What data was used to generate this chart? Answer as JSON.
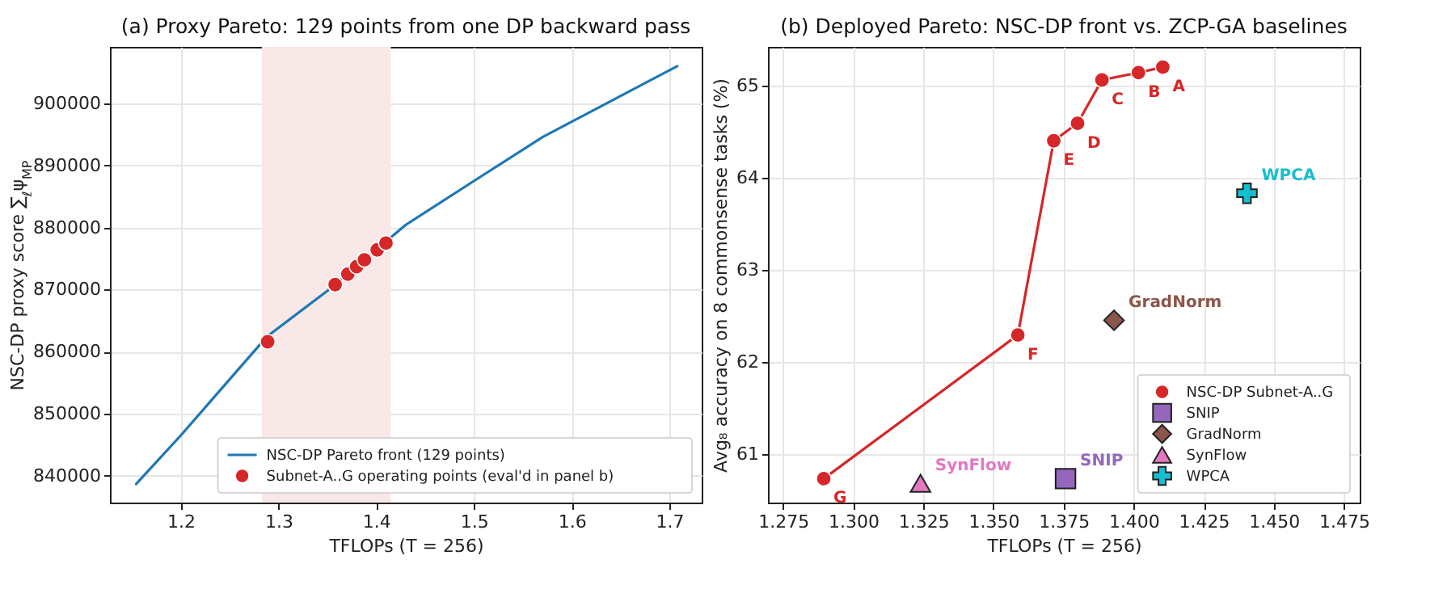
{
  "chart_data": [
    {
      "type": "line",
      "title": "(a) Proxy Pareto: 129 points from one DP backward pass",
      "xlabel": "TFLOPs (T = 256)",
      "ylabel": "NSC-DP proxy score ∑$_{ℓ}$ψ$_{MP}$",
      "xlim": [
        1.1276,
        1.733
      ],
      "xticks": [
        1.2,
        1.3,
        1.4,
        1.5,
        1.6,
        1.7
      ],
      "ylim": [
        835700,
        909100
      ],
      "yticks": [
        840000,
        850000,
        860000,
        870000,
        880000,
        890000,
        900000
      ],
      "grid": true,
      "legend": "bottom right",
      "bands": [
        {
          "axis": "x",
          "from": 1.283,
          "to": 1.415,
          "color": "#f9e8e8"
        }
      ],
      "series": [
        {
          "name": "NSC-DP Pareto front (129 points)",
          "type": "line",
          "color": "#1f77b4",
          "marker": "none",
          "x": [
            1.1545,
            1.2,
            1.288,
            1.35,
            1.43,
            1.499,
            1.5706,
            1.708
          ],
          "values": [
            838700,
            846500,
            862400,
            869800,
            880400,
            887400,
            894600,
            906000
          ]
        },
        {
          "name": "Subnet-A..G operating points (eval'd in panel b)",
          "type": "scatter",
          "color": "#d62728",
          "marker": "circle",
          "x": [
            1.289,
            1.358,
            1.371,
            1.38,
            1.388,
            1.401,
            1.41
          ],
          "values": [
            861600,
            870800,
            872500,
            873700,
            874800,
            876400,
            877500
          ]
        }
      ]
    },
    {
      "type": "line",
      "title": "(b) Deployed Pareto: NSC-DP front vs. ZCP-GA baselines",
      "xlabel": "TFLOPs (T = 256)",
      "ylabel": "Avg₈ accuracy on 8 commonsense tasks (%)",
      "xlim": [
        1.2696,
        1.4806
      ],
      "xticks": [
        {
          "value": 1.275,
          "label": "1.275"
        },
        {
          "value": 1.3,
          "label": "1.300"
        },
        {
          "value": 1.325,
          "label": "1.325"
        },
        {
          "value": 1.35,
          "label": "1.350"
        },
        {
          "value": 1.375,
          "label": "1.375"
        },
        {
          "value": 1.4,
          "label": "1.400"
        },
        {
          "value": 1.425,
          "label": "1.425"
        },
        {
          "value": 1.45,
          "label": "1.450"
        },
        {
          "value": 1.475,
          "label": "1.475"
        }
      ],
      "ylim": [
        60.47,
        65.42
      ],
      "yticks": [
        61,
        62,
        63,
        64,
        65
      ],
      "grid": true,
      "legend": "bottom right",
      "series": [
        {
          "name": "NSC-DP Subnet-A..G",
          "type": "line",
          "color": "#d62728",
          "marker": "circle",
          "x": [
            1.2895,
            1.3587,
            1.3715,
            1.38,
            1.3887,
            1.4017,
            1.4104
          ],
          "values": [
            60.73,
            62.29,
            64.4,
            64.59,
            65.06,
            65.14,
            65.2
          ]
        },
        {
          "name": "SNIP",
          "type": "scatter",
          "color": "#9467bd",
          "marker": "square",
          "x": [
            1.3757
          ],
          "values": [
            60.73
          ]
        },
        {
          "name": "GradNorm",
          "type": "scatter",
          "color": "#8c564b",
          "marker": "diamond",
          "x": [
            1.393
          ],
          "values": [
            62.45
          ]
        },
        {
          "name": "SynFlow",
          "type": "scatter",
          "color": "#e377c2",
          "marker": "triangle",
          "x": [
            1.324
          ],
          "values": [
            60.68
          ]
        },
        {
          "name": "WPCA",
          "type": "scatter",
          "color": "#17becf",
          "marker": "cross",
          "x": [
            1.4404
          ],
          "values": [
            63.83
          ]
        }
      ],
      "annotations": [
        {
          "text": "A",
          "x": 1.4104,
          "y": 65.2
        },
        {
          "text": "B",
          "x": 1.4017,
          "y": 65.14
        },
        {
          "text": "C",
          "x": 1.3887,
          "y": 65.06
        },
        {
          "text": "D",
          "x": 1.38,
          "y": 64.59
        },
        {
          "text": "E",
          "x": 1.3715,
          "y": 64.4
        },
        {
          "text": "F",
          "x": 1.3587,
          "y": 62.29
        },
        {
          "text": "G",
          "x": 1.2895,
          "y": 60.73
        },
        {
          "text": "SNIP",
          "x": 1.3757,
          "y": 60.73
        },
        {
          "text": "GradNorm",
          "x": 1.393,
          "y": 62.45
        },
        {
          "text": "SynFlow",
          "x": 1.324,
          "y": 60.68
        },
        {
          "text": "WPCA",
          "x": 1.4404,
          "y": 63.83
        }
      ]
    }
  ]
}
